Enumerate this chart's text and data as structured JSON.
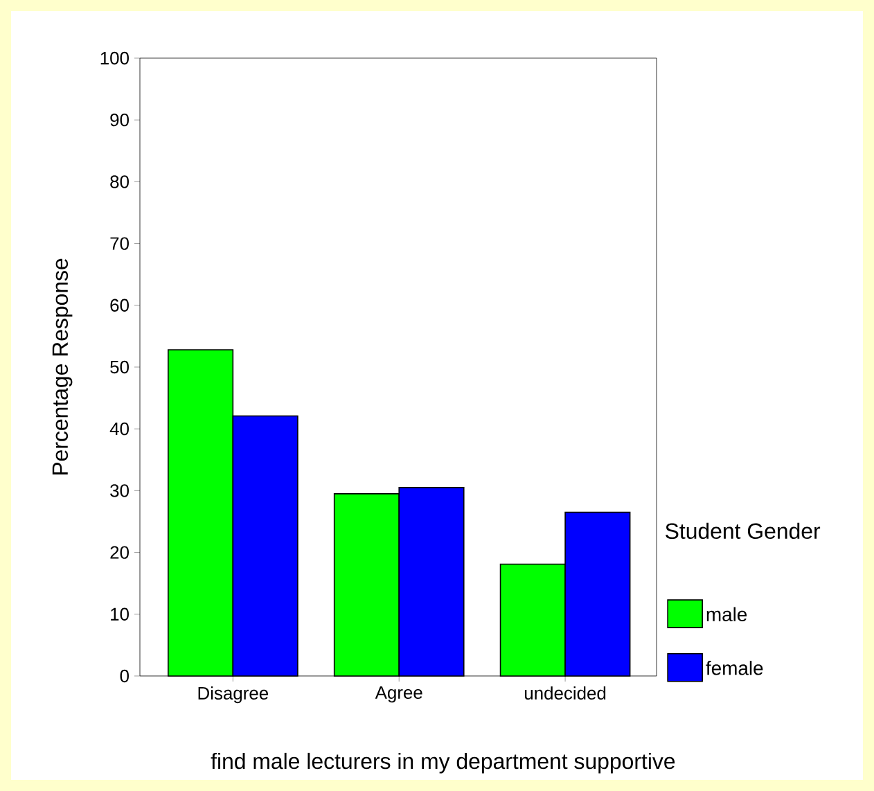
{
  "chart_data": {
    "type": "bar",
    "xlabel": "find male lecturers in my department supportive",
    "ylabel": "Percentage Response",
    "legend_title": "Student Gender",
    "categories": [
      "Disagree",
      "Agree",
      "undecided"
    ],
    "series": [
      {
        "name": "male",
        "color": "#00ff00",
        "values": [
          52.8,
          29.5,
          18.1
        ]
      },
      {
        "name": "female",
        "color": "#0000ff",
        "values": [
          42.1,
          30.5,
          26.5
        ]
      }
    ],
    "ylim": [
      0,
      100
    ],
    "yticks": [
      0,
      10,
      20,
      30,
      40,
      50,
      60,
      70,
      80,
      90,
      100
    ],
    "legend": "right"
  }
}
